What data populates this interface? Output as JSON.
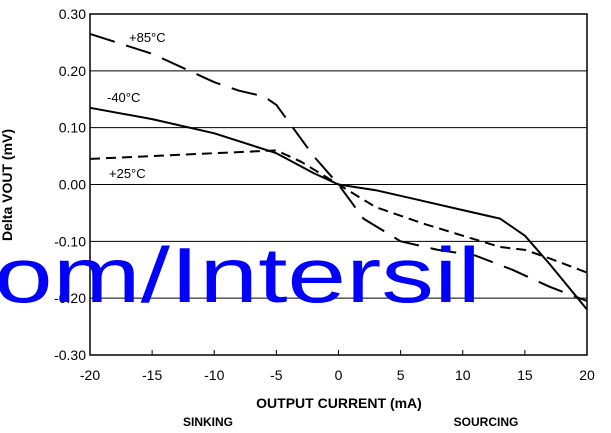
{
  "chart_data": {
    "type": "line",
    "xlabel": "OUTPUT CURRENT (mA)",
    "ylabel": "Delta VOUT (mV)",
    "xlim": [
      -20,
      20
    ],
    "ylim": [
      -0.3,
      0.3
    ],
    "x_ticks": [
      "-20",
      "-15",
      "-10",
      "-5",
      "0",
      "5",
      "10",
      "15",
      "20"
    ],
    "y_ticks": [
      "0.30",
      "0.20",
      "0.10",
      "0.00",
      "-0.10",
      "-0.20",
      "-0.30"
    ],
    "grid": "horizontal",
    "footer_left": "SINKING",
    "footer_right": "SOURCING",
    "series": [
      {
        "name": "+85°C",
        "style": "long-dash",
        "x": [
          -20,
          -15,
          -12,
          -10,
          -8,
          -6,
          -5,
          -4,
          -2,
          0,
          2,
          5,
          8,
          11,
          14,
          17,
          20
        ],
        "y": [
          0.265,
          0.23,
          0.2,
          0.18,
          0.165,
          0.155,
          0.14,
          0.11,
          0.05,
          0.0,
          -0.06,
          -0.1,
          -0.115,
          -0.125,
          -0.15,
          -0.18,
          -0.205
        ]
      },
      {
        "name": "-40°C",
        "style": "solid",
        "x": [
          -20,
          -15,
          -10,
          -5,
          -2,
          0,
          3,
          6,
          10,
          13,
          15,
          17,
          20
        ],
        "y": [
          0.135,
          0.115,
          0.09,
          0.055,
          0.02,
          0.0,
          -0.01,
          -0.025,
          -0.045,
          -0.06,
          -0.09,
          -0.14,
          -0.22
        ]
      },
      {
        "name": "+25°C",
        "style": "short-dash",
        "x": [
          -20,
          -15,
          -10,
          -5,
          -3,
          0,
          3,
          7,
          10,
          13,
          15,
          17,
          20
        ],
        "y": [
          0.045,
          0.05,
          0.055,
          0.06,
          0.04,
          0.0,
          -0.04,
          -0.07,
          -0.09,
          -0.11,
          -0.115,
          -0.13,
          -0.155
        ]
      }
    ],
    "curve_labels": [
      "+85°C",
      "-40°C",
      "+25°C"
    ]
  },
  "watermark": "om/Intersil",
  "colors": {
    "axis": "#000000",
    "watermark": "#0000ff"
  }
}
